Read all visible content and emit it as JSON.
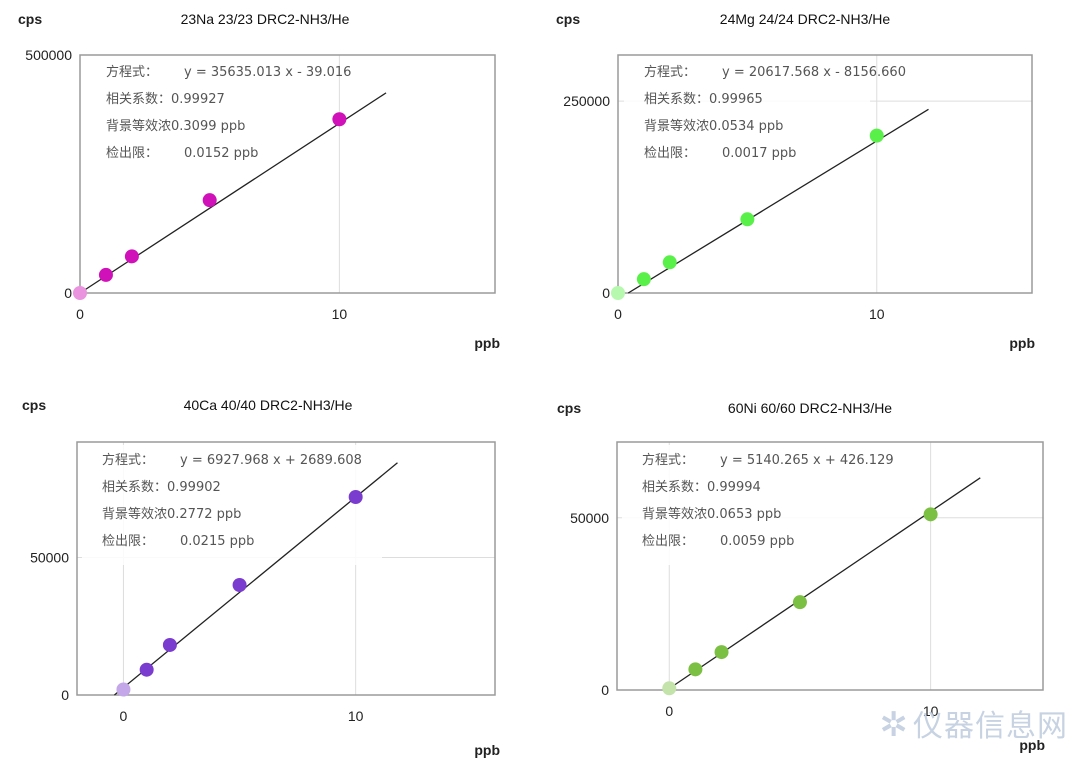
{
  "watermark": "仪器信息网",
  "chart_data": [
    {
      "type": "scatter",
      "title": "23Na 23/23 DRC2-NH3/He",
      "ylabel": "cps",
      "xlabel": "ppb",
      "xlim": [
        0,
        16
      ],
      "ylim": [
        0,
        500000
      ],
      "xticks": [
        0,
        10
      ],
      "yticks": [
        0,
        500000
      ],
      "color": "#d010b8",
      "fit": {
        "slope": 35635.013,
        "intercept": -39.016,
        "x_end": 11.8
      },
      "x": [
        0,
        1,
        2,
        5,
        10
      ],
      "y": [
        0,
        38000,
        77000,
        195000,
        365000
      ],
      "annotations": [
        {
          "label": "方程式：",
          "value": "y = 35635.013 x - 39.016"
        },
        {
          "label": "相关系数：",
          "value": "0.99927"
        },
        {
          "label": "背景等效浓",
          "value": "0.3099 ppb"
        },
        {
          "label": "检出限：",
          "value": "0.0152 ppb"
        }
      ]
    },
    {
      "type": "scatter",
      "title": "24Mg 24/24 DRC2-NH3/He",
      "ylabel": "cps",
      "xlabel": "ppb",
      "xlim": [
        0,
        16
      ],
      "ylim": [
        0,
        310000
      ],
      "xticks": [
        0,
        10
      ],
      "yticks": [
        0,
        250000
      ],
      "color": "#5af04a",
      "fit": {
        "slope": 20617.568,
        "intercept": -8156.66,
        "x_end": 12.0
      },
      "x": [
        0,
        1,
        2,
        5,
        10
      ],
      "y": [
        0,
        18000,
        40000,
        96000,
        205000
      ],
      "annotations": [
        {
          "label": "方程式：",
          "value": "y = 20617.568 x - 8156.660"
        },
        {
          "label": "相关系数：",
          "value": "0.99965"
        },
        {
          "label": "背景等效浓",
          "value": "0.0534 ppb"
        },
        {
          "label": "检出限：",
          "value": "0.0017 ppb"
        }
      ]
    },
    {
      "type": "scatter",
      "title": "40Ca 40/40 DRC2-NH3/He",
      "ylabel": "cps",
      "xlabel": "ppb",
      "xlim": [
        -2,
        16
      ],
      "ylim": [
        0,
        92000
      ],
      "xticks": [
        0,
        10
      ],
      "yticks": [
        0,
        50000
      ],
      "color": "#7a3ccf",
      "fit": {
        "slope": 6927.968,
        "intercept": 2689.608,
        "x_end": 11.8
      },
      "x": [
        0,
        1,
        2,
        5,
        10
      ],
      "y": [
        2000,
        9200,
        18200,
        40000,
        72000
      ],
      "annotations": [
        {
          "label": "方程式：",
          "value": "y = 6927.968 x + 2689.608"
        },
        {
          "label": "相关系数：",
          "value": "0.99902"
        },
        {
          "label": "背景等效浓",
          "value": "0.2772 ppb"
        },
        {
          "label": "检出限：",
          "value": "0.0215 ppb"
        }
      ]
    },
    {
      "type": "scatter",
      "title": "60Ni 60/60 DRC2-NH3/He",
      "ylabel": "cps",
      "xlabel": "ppb",
      "xlim": [
        -2,
        14.3
      ],
      "ylim": [
        0,
        72000
      ],
      "xticks": [
        0,
        10
      ],
      "yticks": [
        0,
        50000
      ],
      "color": "#7cc043",
      "fit": {
        "slope": 5140.265,
        "intercept": 426.129,
        "x_end": 11.9
      },
      "x": [
        0,
        1,
        2,
        5,
        10
      ],
      "y": [
        500,
        6000,
        11000,
        25500,
        51000
      ],
      "annotations": [
        {
          "label": "方程式：",
          "value": "y = 5140.265 x + 426.129"
        },
        {
          "label": "相关系数：",
          "value": "0.99994"
        },
        {
          "label": "背景等效浓",
          "value": "0.0653 ppb"
        },
        {
          "label": "检出限：",
          "value": "0.0059 ppb"
        }
      ]
    }
  ]
}
